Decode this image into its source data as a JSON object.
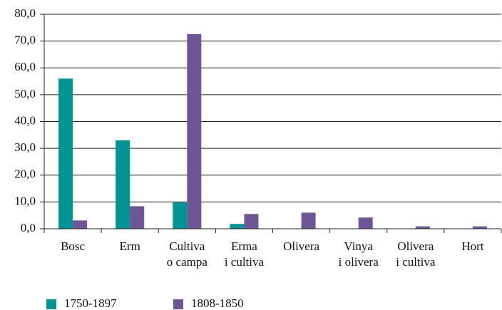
{
  "chart_data": {
    "type": "bar",
    "categories": [
      [
        "Bosc"
      ],
      [
        "Erm"
      ],
      [
        "Cultiva",
        "o campa"
      ],
      [
        "Erma",
        "i cultiva"
      ],
      [
        "Olivera"
      ],
      [
        "Vinya",
        "i olivera"
      ],
      [
        "Olivera",
        "i cultiva"
      ],
      [
        "Hort"
      ]
    ],
    "series": [
      {
        "name": "1750-1897",
        "color": "#009494",
        "values": [
          56,
          33,
          9.8,
          1.8,
          0,
          0,
          0,
          0
        ]
      },
      {
        "name": "1808-1850",
        "color": "#6d5596",
        "values": [
          3.1,
          8.4,
          72.6,
          5.5,
          6.0,
          4.2,
          0.9,
          0.9
        ]
      }
    ],
    "ylim": [
      0,
      80
    ],
    "yticks": [
      {
        "value": 0,
        "label": "0,0"
      },
      {
        "value": 10,
        "label": "10,0"
      },
      {
        "value": 20,
        "label": "20,0"
      },
      {
        "value": 30,
        "label": "30,0"
      },
      {
        "value": 40,
        "label": "40,0"
      },
      {
        "value": 50,
        "label": "50,0"
      },
      {
        "value": 60,
        "label": "60,0"
      },
      {
        "value": 70,
        "label": "70,0"
      },
      {
        "value": 80,
        "label": "80,0"
      }
    ],
    "grid": true,
    "legend": "bottom"
  }
}
